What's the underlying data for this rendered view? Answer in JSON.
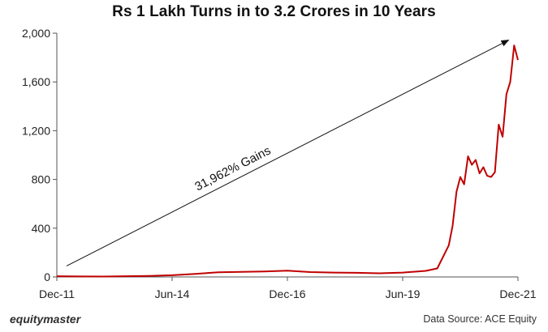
{
  "title": "Rs 1 Lakh Turns in to 3.2 Crores in 10 Years",
  "footer": {
    "brand": "equitymaster",
    "source": "Data Source: ACE Equity"
  },
  "colors": {
    "line": "#c00000",
    "axis": "#555555",
    "annotation": "#111111"
  },
  "chart_data": {
    "type": "line",
    "title": "Rs 1 Lakh Turns in to 3.2 Crores in 10 Years",
    "xlabel": "",
    "ylabel": "",
    "x_ticks": [
      "Dec-11",
      "Jun-14",
      "Dec-16",
      "Jun-19",
      "Dec-21"
    ],
    "y_ticks": [
      "0",
      "400",
      "800",
      "1,200",
      "1,600",
      "2,000"
    ],
    "ylim": [
      0,
      2000
    ],
    "xlim": [
      "2011-12",
      "2021-12"
    ],
    "grid": false,
    "legend": "none",
    "series": [
      {
        "x": [
          "2011-12",
          "2012-06",
          "2012-12",
          "2013-06",
          "2013-12",
          "2014-06",
          "2014-12",
          "2015-06",
          "2015-12",
          "2016-06",
          "2016-12",
          "2017-06",
          "2017-12",
          "2018-06",
          "2018-12",
          "2019-06",
          "2019-12",
          "2020-03",
          "2020-06",
          "2020-07",
          "2020-08",
          "2020-09",
          "2020-10",
          "2020-11",
          "2020-12",
          "2021-01",
          "2021-02",
          "2021-03",
          "2021-04",
          "2021-05",
          "2021-06",
          "2021-07",
          "2021-08",
          "2021-09",
          "2021-10",
          "2021-11",
          "2021-12"
        ],
        "values": [
          6,
          4,
          3,
          6,
          8,
          14,
          25,
          38,
          42,
          45,
          52,
          40,
          36,
          34,
          30,
          36,
          50,
          70,
          260,
          420,
          700,
          820,
          760,
          990,
          920,
          960,
          850,
          900,
          830,
          820,
          860,
          1250,
          1150,
          1500,
          1600,
          1900,
          1780
        ]
      }
    ],
    "annotations": [
      {
        "text": "31,962% Gains",
        "arrow_from": [
          "2011-12",
          50
        ],
        "arrow_to": [
          "2021-10",
          1970
        ]
      }
    ]
  }
}
